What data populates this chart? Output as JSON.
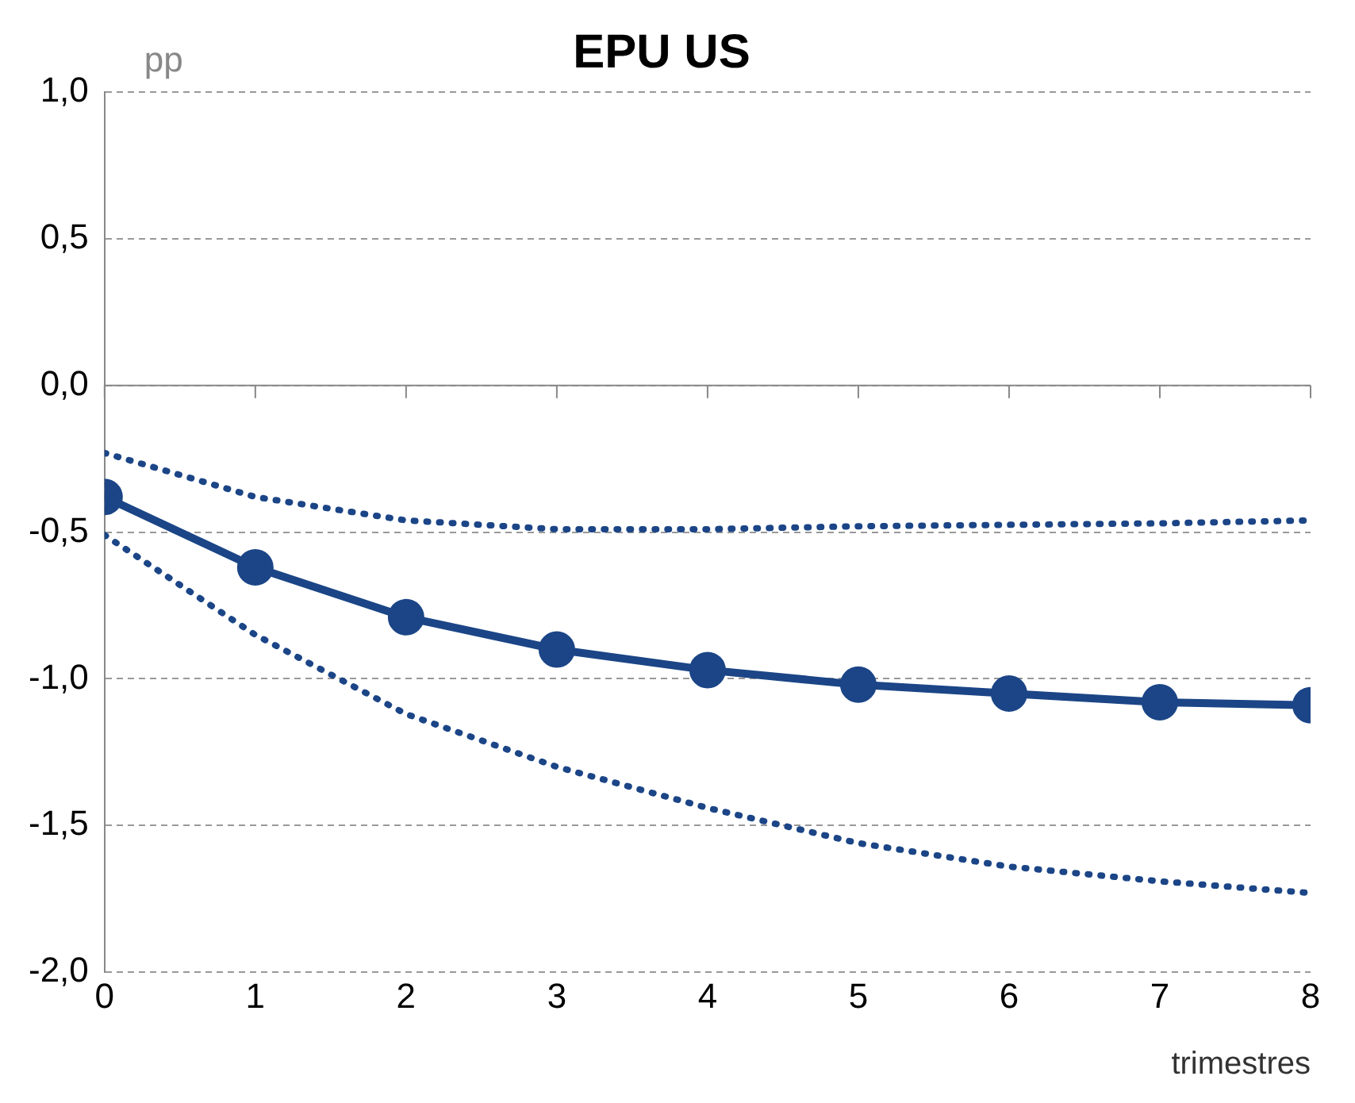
{
  "chart_data": {
    "type": "line",
    "title": "EPU US",
    "ylabel": "pp",
    "xlabel": "trimestres",
    "x": [
      0,
      1,
      2,
      3,
      4,
      5,
      6,
      7,
      8
    ],
    "series": [
      {
        "color": "#1b4586",
        "values": [
          -0.23,
          -0.38,
          -0.46,
          -0.49,
          -0.49,
          -0.48,
          -0.475,
          -0.47,
          -0.46
        ],
        "line_style": "dotted",
        "marker": "none"
      },
      {
        "color": "#1b4586",
        "values": [
          -0.51,
          -0.85,
          -1.12,
          -1.3,
          -1.44,
          -1.56,
          -1.64,
          -1.69,
          -1.73
        ],
        "line_style": "dotted",
        "marker": "none"
      },
      {
        "color": "#1b4586",
        "values": [
          -0.38,
          -0.62,
          -0.79,
          -0.9,
          -0.97,
          -1.02,
          -1.05,
          -1.08,
          -1.09
        ],
        "line_style": "solid",
        "marker": "circle"
      }
    ],
    "xlim": [
      0,
      8
    ],
    "xticks": [
      0,
      1,
      2,
      3,
      4,
      5,
      6,
      7,
      8
    ],
    "ylim": [
      -2,
      1
    ],
    "yticks": [
      {
        "value": -2,
        "label": "-2,0"
      },
      {
        "value": -1.5,
        "label": "-1,5"
      },
      {
        "value": -1,
        "label": "-1,0"
      },
      {
        "value": -0.5,
        "label": "-0,5"
      },
      {
        "value": 0,
        "label": "0,0"
      },
      {
        "value": 0.5,
        "label": "0,5"
      },
      {
        "value": 1,
        "label": "1,0"
      }
    ],
    "grid": "y",
    "legend": false
  }
}
